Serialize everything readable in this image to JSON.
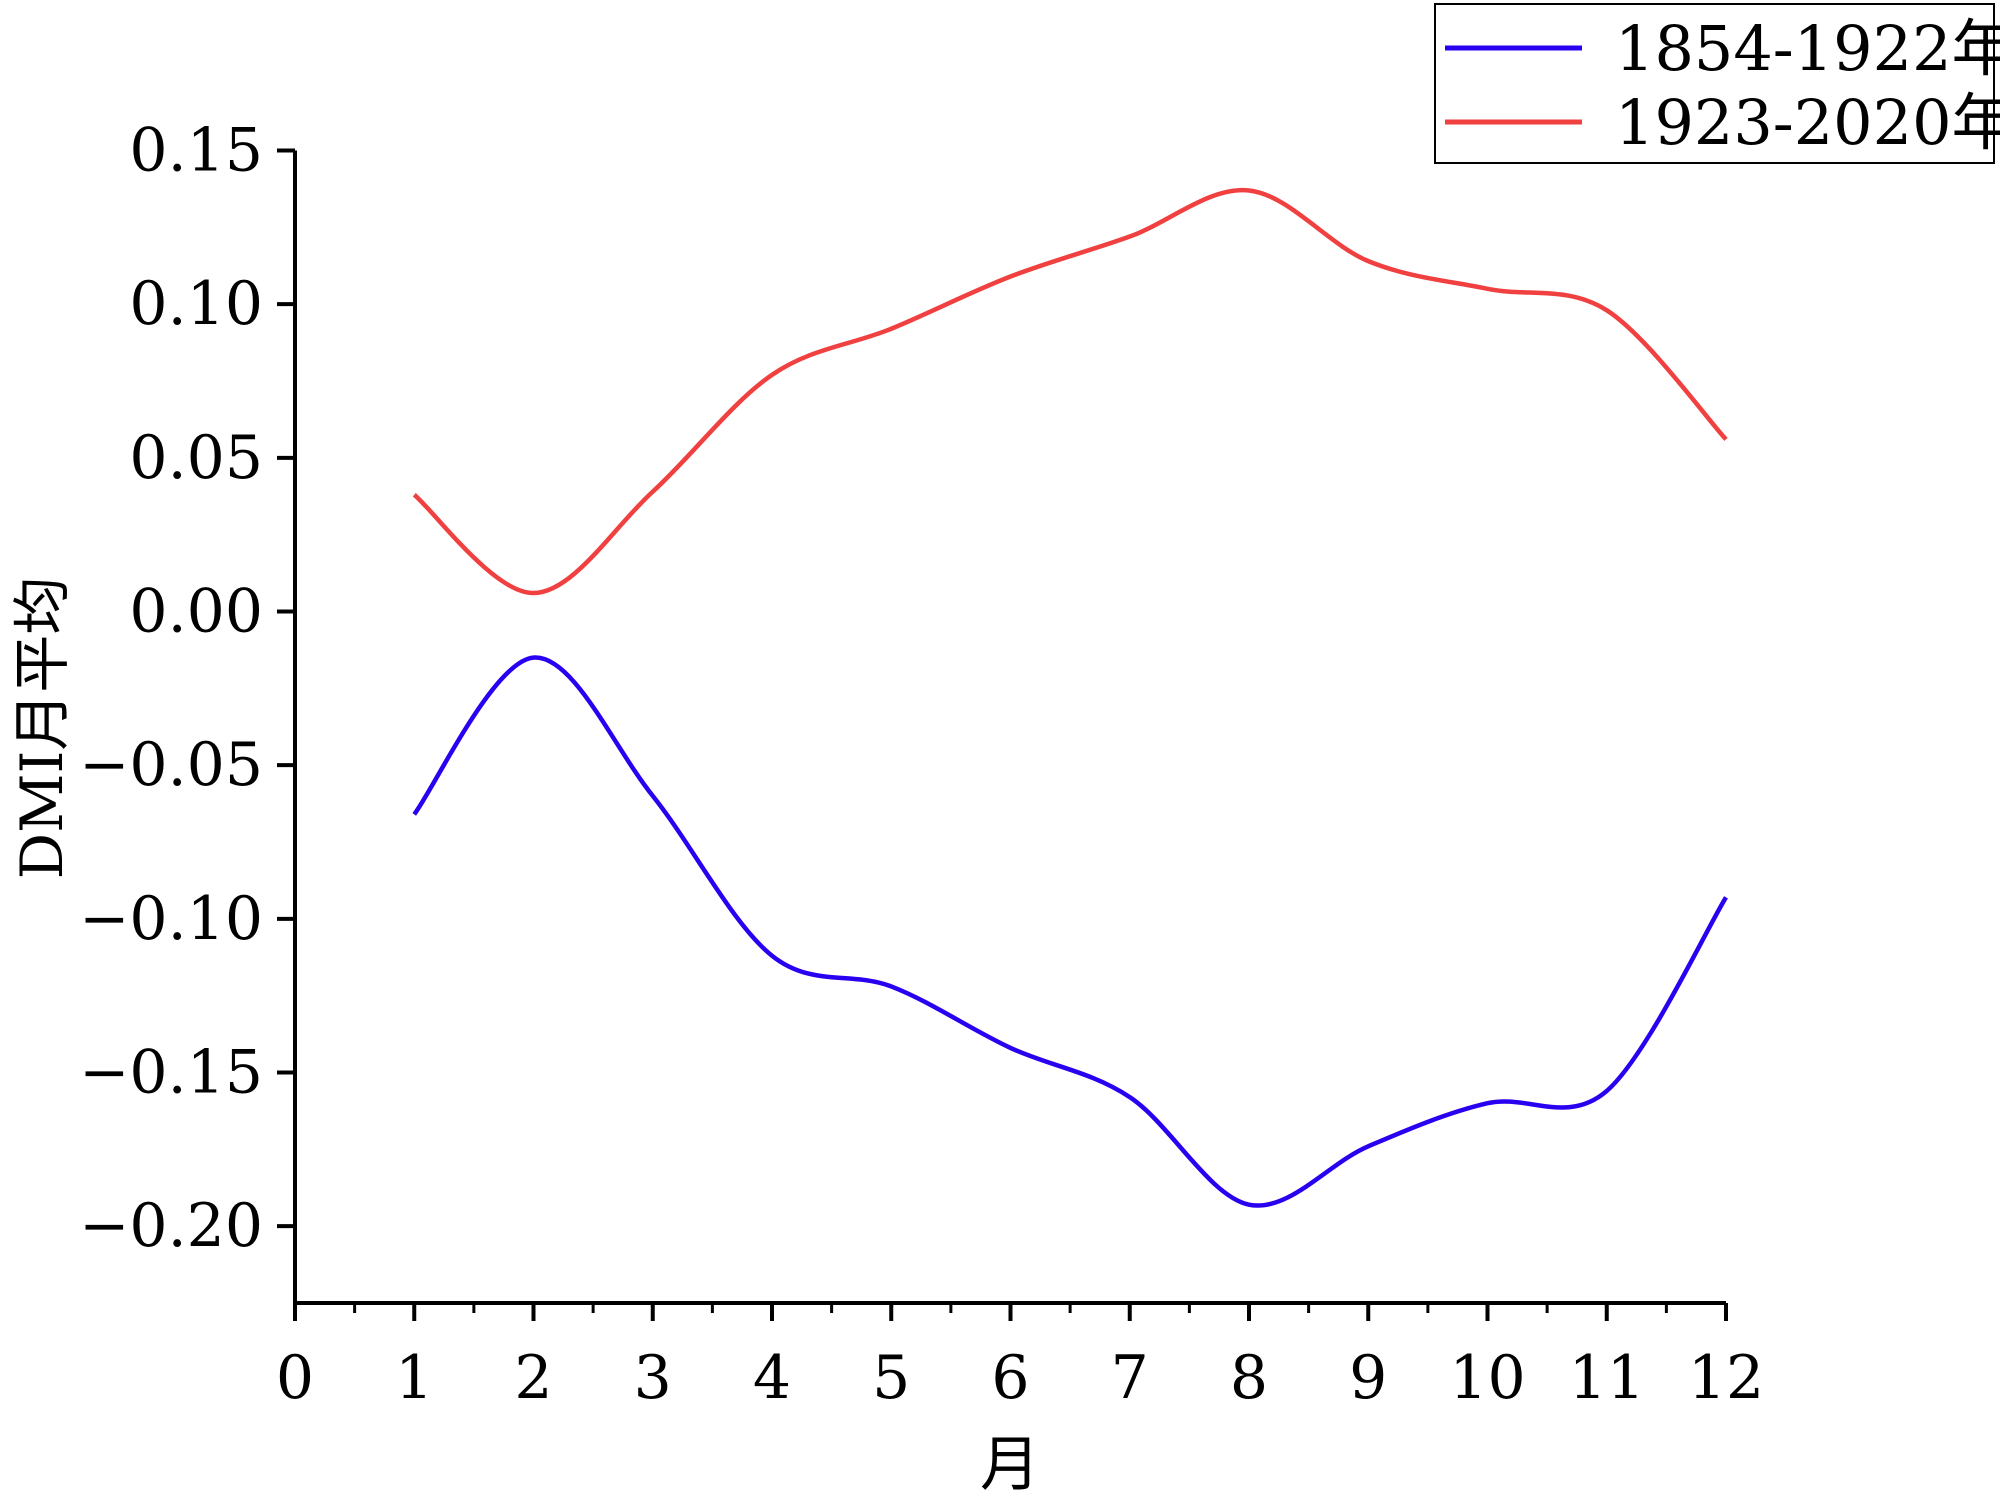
{
  "chart_data": {
    "type": "line",
    "title": "",
    "xlabel": "月",
    "ylabel": "DMI月平均",
    "xlim": [
      0,
      12
    ],
    "ylim": [
      -0.225,
      0.15
    ],
    "x_ticks": [
      "0",
      "1",
      "2",
      "3",
      "4",
      "5",
      "6",
      "7",
      "8",
      "9",
      "10",
      "11",
      "12"
    ],
    "y_ticks": [
      "0.15",
      "0.10",
      "0.05",
      "0.00",
      "−0.05",
      "−0.10",
      "−0.15",
      "−0.20"
    ],
    "y_tick_values": [
      0.15,
      0.1,
      0.05,
      0.0,
      -0.05,
      -0.1,
      -0.15,
      -0.2
    ],
    "grid": false,
    "smooth": true,
    "legend_position": "top-right",
    "x": [
      1,
      2,
      3,
      4,
      5,
      6,
      7,
      8,
      9,
      10,
      11,
      12
    ],
    "series": [
      {
        "name": "1854-1922年",
        "color": "#2a00f0",
        "values": [
          -0.066,
          -0.015,
          -0.06,
          -0.112,
          -0.122,
          -0.142,
          -0.158,
          -0.193,
          -0.174,
          -0.16,
          -0.156,
          -0.093
        ]
      },
      {
        "name": "1923-2020年",
        "color": "#f04040",
        "values": [
          0.038,
          0.006,
          0.039,
          0.077,
          0.092,
          0.109,
          0.122,
          0.137,
          0.114,
          0.105,
          0.098,
          0.056
        ]
      }
    ]
  }
}
